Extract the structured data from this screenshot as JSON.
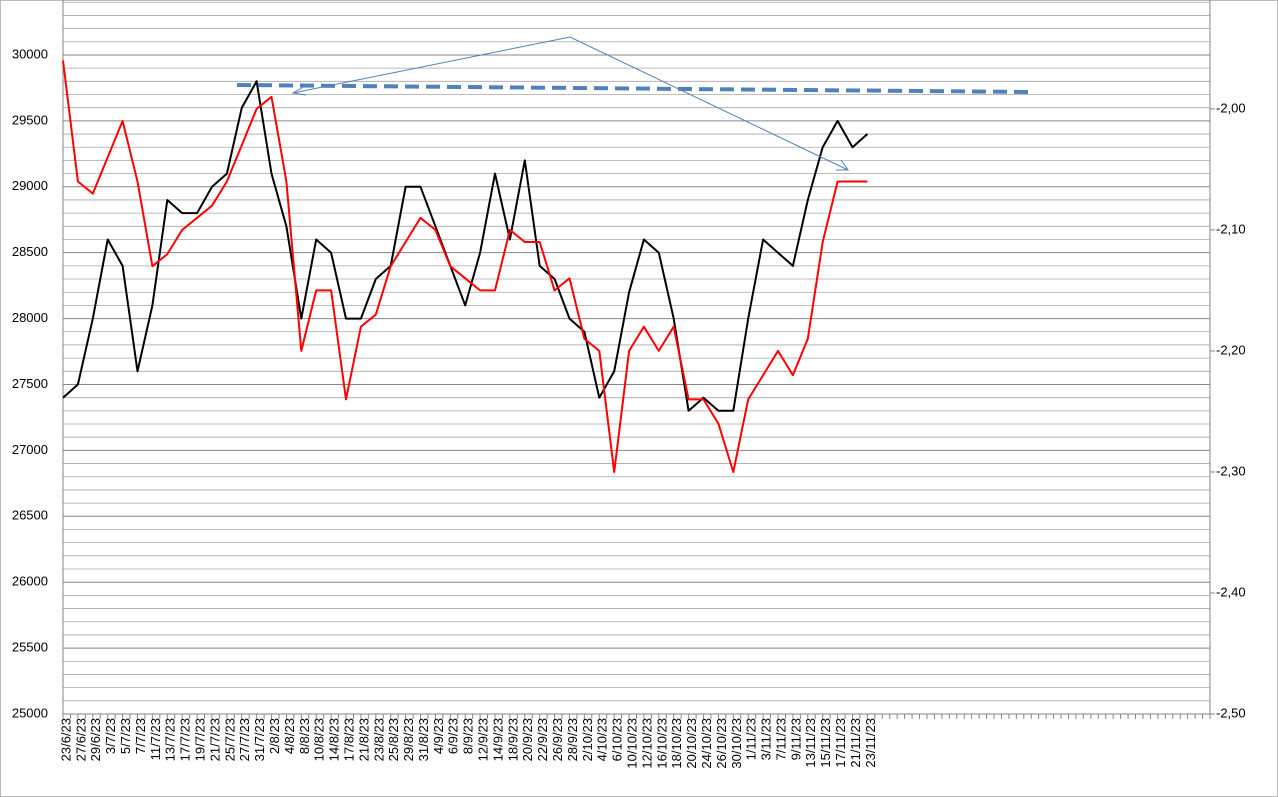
{
  "chart_data": {
    "type": "line",
    "categories": [
      "23/6/23",
      "27/6/23",
      "29/6/23",
      "3/7/23",
      "5/7/23",
      "7/7/23",
      "11/7/23",
      "13/7/23",
      "17/7/23",
      "19/7/23",
      "21/7/23",
      "25/7/23",
      "27/7/23",
      "31/7/23",
      "2/8/23",
      "4/8/23",
      "8/8/23",
      "10/8/23",
      "14/8/23",
      "17/8/23",
      "21/8/23",
      "23/8/23",
      "25/8/23",
      "29/8/23",
      "31/8/23",
      "4/9/23",
      "6/9/23",
      "8/9/23",
      "12/9/23",
      "14/9/23",
      "18/9/23",
      "20/9/23",
      "22/9/23",
      "26/9/23",
      "28/9/23",
      "2/10/23",
      "4/10/23",
      "6/10/23",
      "10/10/23",
      "12/10/23",
      "16/10/23",
      "18/10/23",
      "20/10/23",
      "24/10/23",
      "26/10/23",
      "30/10/23",
      "1/11/23",
      "3/11/23",
      "7/11/23",
      "9/11/23",
      "13/11/23",
      "15/11/23",
      "17/11/23",
      "21/11/23",
      "23/11/23",
      null,
      null,
      null,
      null,
      null,
      null,
      null,
      null,
      null,
      null,
      null,
      null,
      null,
      null,
      null,
      null,
      null,
      null,
      null,
      null,
      null,
      null
    ],
    "series": [
      {
        "color": "#000000",
        "values": [
          27400,
          27500,
          28000,
          28600,
          28400,
          27600,
          28100,
          28900,
          28800,
          28800,
          29000,
          29100,
          29600,
          29800,
          29100,
          28700,
          28000,
          28600,
          28500,
          28000,
          28000,
          28300,
          28400,
          29000,
          29000,
          28700,
          28400,
          28100,
          28500,
          29100,
          28600,
          29200,
          28400,
          28300,
          28000,
          27900,
          27400,
          27600,
          28200,
          28600,
          28500,
          28000,
          27300,
          27400,
          27300,
          27300,
          28000,
          28600,
          28500,
          28400,
          28900,
          29300,
          29500,
          29300,
          29400,
          null,
          null,
          null,
          null,
          null,
          null,
          null,
          null,
          null,
          null,
          null,
          null,
          null,
          null,
          null,
          null,
          null,
          null,
          null,
          null,
          null,
          null
        ]
      },
      {
        "color": "#ff0000",
        "axis": "y2",
        "values": [
          -1.96,
          -2.06,
          -2.07,
          -2.04,
          -2.01,
          -2.06,
          -2.13,
          -2.12,
          -2.1,
          -2.09,
          -2.08,
          -2.06,
          -2.03,
          -2.0,
          -1.99,
          -2.06,
          -2.2,
          -2.15,
          -2.15,
          -2.24,
          -2.18,
          -2.17,
          -2.13,
          -2.11,
          -2.09,
          -2.1,
          -2.13,
          -2.14,
          -2.15,
          -2.15,
          -2.1,
          -2.11,
          -2.11,
          -2.15,
          -2.14,
          -2.19,
          -2.2,
          -2.3,
          -2.2,
          -2.18,
          -2.2,
          -2.18,
          -2.24,
          -2.24,
          -2.26,
          -2.3,
          -2.24,
          -2.22,
          -2.2,
          -2.22,
          -2.19,
          -2.11,
          -2.06,
          -2.06,
          -2.06,
          null,
          null,
          null,
          null,
          null,
          null,
          null,
          null,
          null,
          null,
          null,
          null,
          null,
          null,
          null,
          null,
          null,
          null,
          null,
          null,
          null,
          null
        ]
      }
    ],
    "ylim": [
      25000,
      30417
    ],
    "yticks": [
      25000,
      25500,
      26000,
      26500,
      27000,
      27500,
      28000,
      28500,
      29000,
      29500,
      30000
    ],
    "y2lim": [
      -2.5,
      -1.91
    ],
    "y2ticks": [
      {
        "value": -2.5,
        "label": "-2,50"
      },
      {
        "value": -2.4,
        "label": "-2,40"
      },
      {
        "value": -2.3,
        "label": "-2,30"
      },
      {
        "value": -2.2,
        "label": "-2,20"
      },
      {
        "value": -2.1,
        "label": "-2,10"
      },
      {
        "value": -2.0,
        "label": "-2,00"
      }
    ],
    "grid": true
  }
}
